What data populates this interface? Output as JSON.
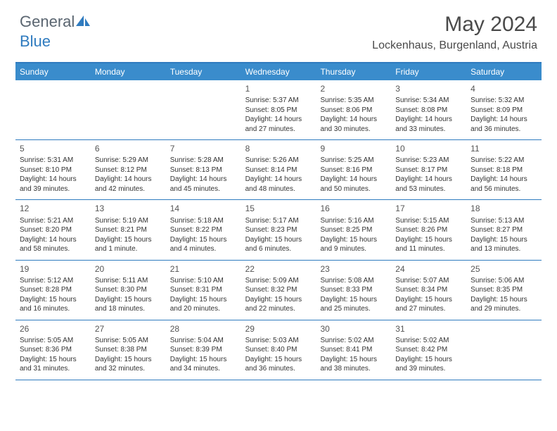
{
  "logo": {
    "text1": "General",
    "text2": "Blue"
  },
  "title": "May 2024",
  "location": "Lockenhaus, Burgenland, Austria",
  "header_bg": "#3a8ccc",
  "border_color": "#2f7bbf",
  "dayNames": [
    "Sunday",
    "Monday",
    "Tuesday",
    "Wednesday",
    "Thursday",
    "Friday",
    "Saturday"
  ],
  "weeks": [
    [
      null,
      null,
      null,
      {
        "n": "1",
        "sr": "Sunrise: 5:37 AM",
        "ss": "Sunset: 8:05 PM",
        "dl1": "Daylight: 14 hours",
        "dl2": "and 27 minutes."
      },
      {
        "n": "2",
        "sr": "Sunrise: 5:35 AM",
        "ss": "Sunset: 8:06 PM",
        "dl1": "Daylight: 14 hours",
        "dl2": "and 30 minutes."
      },
      {
        "n": "3",
        "sr": "Sunrise: 5:34 AM",
        "ss": "Sunset: 8:08 PM",
        "dl1": "Daylight: 14 hours",
        "dl2": "and 33 minutes."
      },
      {
        "n": "4",
        "sr": "Sunrise: 5:32 AM",
        "ss": "Sunset: 8:09 PM",
        "dl1": "Daylight: 14 hours",
        "dl2": "and 36 minutes."
      }
    ],
    [
      {
        "n": "5",
        "sr": "Sunrise: 5:31 AM",
        "ss": "Sunset: 8:10 PM",
        "dl1": "Daylight: 14 hours",
        "dl2": "and 39 minutes."
      },
      {
        "n": "6",
        "sr": "Sunrise: 5:29 AM",
        "ss": "Sunset: 8:12 PM",
        "dl1": "Daylight: 14 hours",
        "dl2": "and 42 minutes."
      },
      {
        "n": "7",
        "sr": "Sunrise: 5:28 AM",
        "ss": "Sunset: 8:13 PM",
        "dl1": "Daylight: 14 hours",
        "dl2": "and 45 minutes."
      },
      {
        "n": "8",
        "sr": "Sunrise: 5:26 AM",
        "ss": "Sunset: 8:14 PM",
        "dl1": "Daylight: 14 hours",
        "dl2": "and 48 minutes."
      },
      {
        "n": "9",
        "sr": "Sunrise: 5:25 AM",
        "ss": "Sunset: 8:16 PM",
        "dl1": "Daylight: 14 hours",
        "dl2": "and 50 minutes."
      },
      {
        "n": "10",
        "sr": "Sunrise: 5:23 AM",
        "ss": "Sunset: 8:17 PM",
        "dl1": "Daylight: 14 hours",
        "dl2": "and 53 minutes."
      },
      {
        "n": "11",
        "sr": "Sunrise: 5:22 AM",
        "ss": "Sunset: 8:18 PM",
        "dl1": "Daylight: 14 hours",
        "dl2": "and 56 minutes."
      }
    ],
    [
      {
        "n": "12",
        "sr": "Sunrise: 5:21 AM",
        "ss": "Sunset: 8:20 PM",
        "dl1": "Daylight: 14 hours",
        "dl2": "and 58 minutes."
      },
      {
        "n": "13",
        "sr": "Sunrise: 5:19 AM",
        "ss": "Sunset: 8:21 PM",
        "dl1": "Daylight: 15 hours",
        "dl2": "and 1 minute."
      },
      {
        "n": "14",
        "sr": "Sunrise: 5:18 AM",
        "ss": "Sunset: 8:22 PM",
        "dl1": "Daylight: 15 hours",
        "dl2": "and 4 minutes."
      },
      {
        "n": "15",
        "sr": "Sunrise: 5:17 AM",
        "ss": "Sunset: 8:23 PM",
        "dl1": "Daylight: 15 hours",
        "dl2": "and 6 minutes."
      },
      {
        "n": "16",
        "sr": "Sunrise: 5:16 AM",
        "ss": "Sunset: 8:25 PM",
        "dl1": "Daylight: 15 hours",
        "dl2": "and 9 minutes."
      },
      {
        "n": "17",
        "sr": "Sunrise: 5:15 AM",
        "ss": "Sunset: 8:26 PM",
        "dl1": "Daylight: 15 hours",
        "dl2": "and 11 minutes."
      },
      {
        "n": "18",
        "sr": "Sunrise: 5:13 AM",
        "ss": "Sunset: 8:27 PM",
        "dl1": "Daylight: 15 hours",
        "dl2": "and 13 minutes."
      }
    ],
    [
      {
        "n": "19",
        "sr": "Sunrise: 5:12 AM",
        "ss": "Sunset: 8:28 PM",
        "dl1": "Daylight: 15 hours",
        "dl2": "and 16 minutes."
      },
      {
        "n": "20",
        "sr": "Sunrise: 5:11 AM",
        "ss": "Sunset: 8:30 PM",
        "dl1": "Daylight: 15 hours",
        "dl2": "and 18 minutes."
      },
      {
        "n": "21",
        "sr": "Sunrise: 5:10 AM",
        "ss": "Sunset: 8:31 PM",
        "dl1": "Daylight: 15 hours",
        "dl2": "and 20 minutes."
      },
      {
        "n": "22",
        "sr": "Sunrise: 5:09 AM",
        "ss": "Sunset: 8:32 PM",
        "dl1": "Daylight: 15 hours",
        "dl2": "and 22 minutes."
      },
      {
        "n": "23",
        "sr": "Sunrise: 5:08 AM",
        "ss": "Sunset: 8:33 PM",
        "dl1": "Daylight: 15 hours",
        "dl2": "and 25 minutes."
      },
      {
        "n": "24",
        "sr": "Sunrise: 5:07 AM",
        "ss": "Sunset: 8:34 PM",
        "dl1": "Daylight: 15 hours",
        "dl2": "and 27 minutes."
      },
      {
        "n": "25",
        "sr": "Sunrise: 5:06 AM",
        "ss": "Sunset: 8:35 PM",
        "dl1": "Daylight: 15 hours",
        "dl2": "and 29 minutes."
      }
    ],
    [
      {
        "n": "26",
        "sr": "Sunrise: 5:05 AM",
        "ss": "Sunset: 8:36 PM",
        "dl1": "Daylight: 15 hours",
        "dl2": "and 31 minutes."
      },
      {
        "n": "27",
        "sr": "Sunrise: 5:05 AM",
        "ss": "Sunset: 8:38 PM",
        "dl1": "Daylight: 15 hours",
        "dl2": "and 32 minutes."
      },
      {
        "n": "28",
        "sr": "Sunrise: 5:04 AM",
        "ss": "Sunset: 8:39 PM",
        "dl1": "Daylight: 15 hours",
        "dl2": "and 34 minutes."
      },
      {
        "n": "29",
        "sr": "Sunrise: 5:03 AM",
        "ss": "Sunset: 8:40 PM",
        "dl1": "Daylight: 15 hours",
        "dl2": "and 36 minutes."
      },
      {
        "n": "30",
        "sr": "Sunrise: 5:02 AM",
        "ss": "Sunset: 8:41 PM",
        "dl1": "Daylight: 15 hours",
        "dl2": "and 38 minutes."
      },
      {
        "n": "31",
        "sr": "Sunrise: 5:02 AM",
        "ss": "Sunset: 8:42 PM",
        "dl1": "Daylight: 15 hours",
        "dl2": "and 39 minutes."
      },
      null
    ]
  ]
}
